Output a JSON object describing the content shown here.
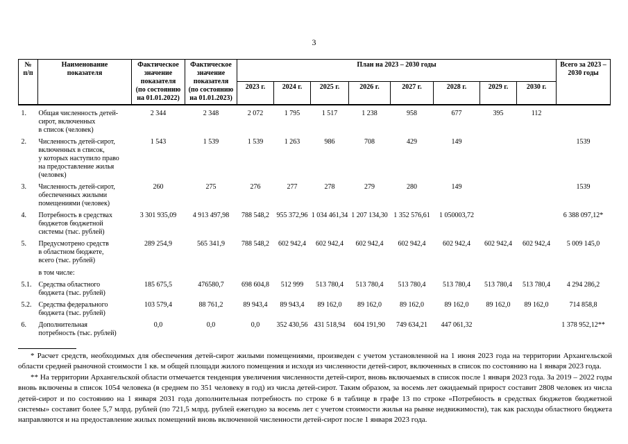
{
  "page": {
    "number": "3"
  },
  "table": {
    "header": {
      "col_num": "№\nп/п",
      "col_name": "Наименование\nпоказателя",
      "col_fact2022": "Фактическое\nзначение\nпоказателя\n(по состоянию\nна 01.01.2022)",
      "col_fact2023": "Фактическое\nзначение\nпоказателя\n(по состоянию\nна 01.01.2023)",
      "plan_group": "План на 2023 – 2030 годы",
      "years": [
        "2023 г.",
        "2024 г.",
        "2025 г.",
        "2026 г.",
        "2027 г.",
        "2028 г.",
        "2029 г.",
        "2030 г."
      ],
      "col_total": "Всего за 2023 –\n2030 годы"
    },
    "rows": [
      {
        "num": "1.",
        "name": "Общая численность детей-\nсирот, включенных\nв список (человек)",
        "sub": "",
        "fact2022": "2 344",
        "fact2023": "2 348",
        "years": [
          "2 072",
          "1 795",
          "1 517",
          "1 238",
          "958",
          "677",
          "395",
          "112"
        ],
        "total": ""
      },
      {
        "num": "2.",
        "name": "Численность детей-сирот,\nвключенных в список,\nу которых наступило право\nна предоставление жилья\n(человек)",
        "sub": "",
        "fact2022": "1 543",
        "fact2023": "1 539",
        "years": [
          "1 539",
          "1 263",
          "986",
          "708",
          "429",
          "149",
          "",
          ""
        ],
        "total": "1539"
      },
      {
        "num": "3.",
        "name": "Численность детей-сирот,\nобеспеченных жилыми\nпомещениями (человек)",
        "sub": "",
        "fact2022": "260",
        "fact2023": "275",
        "years": [
          "276",
          "277",
          "278",
          "279",
          "280",
          "149",
          "",
          ""
        ],
        "total": "1539"
      },
      {
        "num": "4.",
        "name": "Потребность в средствах\nбюджетов бюджетной\nсистемы (тыс. рублей)",
        "sub": "",
        "fact2022": "3 301 935,09",
        "fact2023": "4 913 497,98",
        "years": [
          "788 548,2",
          "955 372,96",
          "1 034 461,34",
          "1 207 134,30",
          "1 352 576,61",
          "1 050003,72",
          "",
          ""
        ],
        "total": "6 388 097,12*"
      },
      {
        "num": "5.",
        "name": "Предусмотрено средств\nв областном бюджете,\nвсего (тыс. рублей)",
        "sub": "в том числе:",
        "fact2022": "289 254,9",
        "fact2023": "565 341,9",
        "years": [
          "788 548,2",
          "602 942,4",
          "602 942,4",
          "602 942,4",
          "602 942,4",
          "602 942,4",
          "602 942,4",
          "602 942,4"
        ],
        "total": "5 009 145,0"
      },
      {
        "num": "5.1.",
        "name": "Средства областного\nбюджета (тыс. рублей)",
        "sub": "",
        "fact2022": "185 675,5",
        "fact2023": "476580,7",
        "years": [
          "698 604,8",
          "512 999",
          "513 780,4",
          "513 780,4",
          "513 780,4",
          "513 780,4",
          "513 780,4",
          "513 780,4"
        ],
        "total": "4 294 286,2"
      },
      {
        "num": "5.2.",
        "name": "Средства федерального\nбюджета (тыс. рублей)",
        "sub": "",
        "fact2022": "103 579,4",
        "fact2023": "88 761,2",
        "years": [
          "89 943,4",
          "89 943,4",
          "89 162,0",
          "89 162,0",
          "89 162,0",
          "89 162,0",
          "89 162,0",
          "89 162,0"
        ],
        "total": "714 858,8"
      },
      {
        "num": "6.",
        "name": "Дополнительная\nпотребность (тыс. рублей)",
        "sub": "",
        "fact2022": "0,0",
        "fact2023": "0,0",
        "years": [
          "0,0",
          "352 430,56",
          "431 518,94",
          "604 191,90",
          "749 634,21",
          "447 061,32",
          "",
          ""
        ],
        "total": "1 378 952,12**"
      }
    ]
  },
  "footnotes": [
    "* Расчет средств, необходимых для обеспечения детей-сирот жилыми помещениями, произведен с учетом установленной на 1 июня 2023 года на территории Архангельской области средней рыночной стоимости 1 кв. м общей площади жилого помещения и исходя из численности детей-сирот, включенных в список по состоянию на 1 января 2023 года.",
    "** На территории Архангельской области отмечается тенденция увеличения численности детей-сирот, вновь включаемых в список после 1 января 2023 года. За 2019 – 2022 годы вновь включены в список 1054 человека (в среднем по 351 человеку в год) из числа детей-сирот. Таким образом, за восемь лет ожидаемый прирост составит 2808 человек из числа детей-сирот и по состоянию на 1 января 2031 года дополнительная потребность по строке 6 в таблице в графе 13 по строке «Потребность в средствах бюджетов бюджетной системы» составит более 5,7 млрд. рублей (по 721,5 млрд. рублей ежегодно за восемь лет с учетом стоимости жилья на рынке недвижимости), так как расходы областного бюджета направляются и на предоставление жилых помещений вновь включенной численности детей-сирот после 1 января 2023 года."
  ]
}
